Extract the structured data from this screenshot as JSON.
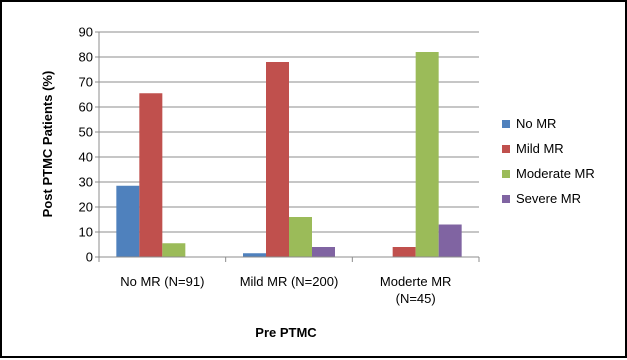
{
  "chart_data": {
    "type": "bar",
    "title": "",
    "xlabel": "Pre PTMC",
    "ylabel": "Post PTMC Patients (%)",
    "ylim": [
      0,
      90
    ],
    "yticks": [
      0,
      10,
      20,
      30,
      40,
      50,
      60,
      70,
      80,
      90
    ],
    "grid": true,
    "legend_position": "right",
    "categories": [
      [
        "No MR (N=91)"
      ],
      [
        "Mild MR (N=200)"
      ],
      [
        "Moderte MR",
        "(N=45)"
      ]
    ],
    "series": [
      {
        "name": "No MR",
        "color": "#4F81BD",
        "values": [
          28.5,
          1.5,
          0
        ]
      },
      {
        "name": "Mild MR",
        "color": "#C0504D",
        "values": [
          65.5,
          78,
          4
        ]
      },
      {
        "name": "Moderate MR",
        "color": "#9BBB59",
        "values": [
          5.5,
          16,
          82
        ]
      },
      {
        "name": "Severe MR",
        "color": "#8064A2",
        "values": [
          0,
          4,
          13
        ]
      }
    ]
  }
}
